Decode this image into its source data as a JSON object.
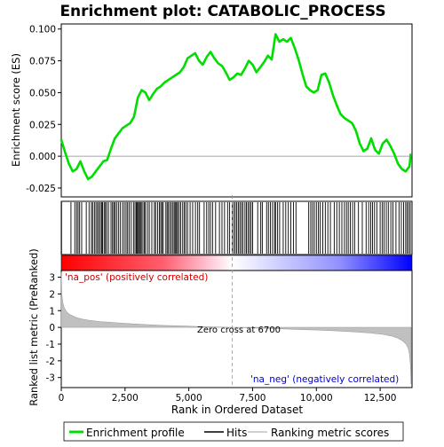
{
  "chart_data": {
    "type": "line",
    "title": "Enrichment plot: CATABOLIC_PROCESS",
    "top_panel": {
      "ylabel": "Enrichment score (ES)",
      "ylim": [
        -0.032,
        0.104
      ],
      "yticks": [
        -0.025,
        0.0,
        0.025,
        0.05,
        0.075,
        0.1
      ],
      "ytick_labels": [
        "-0.025",
        "0.000",
        "0.025",
        "0.050",
        "0.075",
        "0.100"
      ],
      "series": [
        {
          "name": "Enrichment profile",
          "color": "#00dd00",
          "x": [
            0,
            150,
            300,
            450,
            600,
            750,
            900,
            1050,
            1200,
            1350,
            1500,
            1650,
            1800,
            1950,
            2100,
            2250,
            2400,
            2550,
            2700,
            2850,
            3000,
            3150,
            3300,
            3450,
            3600,
            3750,
            3900,
            4050,
            4200,
            4350,
            4500,
            4650,
            4800,
            4950,
            5100,
            5250,
            5400,
            5550,
            5700,
            5850,
            6000,
            6150,
            6300,
            6450,
            6600,
            6750,
            6900,
            7050,
            7200,
            7350,
            7500,
            7650,
            7800,
            7950,
            8100,
            8250,
            8400,
            8550,
            8700,
            8850,
            9000,
            9150,
            9300,
            9450,
            9600,
            9750,
            9900,
            10050,
            10200,
            10350,
            10500,
            10650,
            10800,
            10950,
            11100,
            11250,
            11400,
            11550,
            11700,
            11850,
            12000,
            12150,
            12300,
            12450,
            12600,
            12750,
            12900,
            13050,
            13200,
            13350,
            13500,
            13650,
            13700
          ],
          "y": [
            0.013,
            0.003,
            -0.006,
            -0.012,
            -0.01,
            -0.004,
            -0.012,
            -0.018,
            -0.016,
            -0.012,
            -0.008,
            -0.004,
            -0.003,
            0.006,
            0.014,
            0.018,
            0.022,
            0.024,
            0.026,
            0.031,
            0.046,
            0.052,
            0.05,
            0.044,
            0.049,
            0.053,
            0.055,
            0.058,
            0.06,
            0.062,
            0.064,
            0.066,
            0.07,
            0.077,
            0.079,
            0.081,
            0.075,
            0.072,
            0.078,
            0.082,
            0.077,
            0.073,
            0.071,
            0.066,
            0.06,
            0.062,
            0.065,
            0.064,
            0.069,
            0.075,
            0.072,
            0.066,
            0.07,
            0.074,
            0.079,
            0.076,
            0.096,
            0.09,
            0.092,
            0.09,
            0.093,
            0.085,
            0.076,
            0.065,
            0.055,
            0.052,
            0.05,
            0.052,
            0.064,
            0.065,
            0.058,
            0.048,
            0.04,
            0.033,
            0.03,
            0.028,
            0.026,
            0.02,
            0.01,
            0.004,
            0.006,
            0.014,
            0.005,
            0.002,
            0.01,
            0.013,
            0.008,
            0.002,
            -0.006,
            -0.01,
            -0.012,
            -0.008,
            0.002
          ]
        }
      ]
    },
    "middle_panel": {
      "series_name": "Hits",
      "hit_color": "#000000",
      "hits": [
        10,
        380,
        530,
        600,
        660,
        720,
        800,
        980,
        1090,
        1180,
        1230,
        1300,
        1360,
        1420,
        1470,
        1530,
        1580,
        1620,
        1680,
        1730,
        1780,
        1850,
        1950,
        2010,
        2060,
        2110,
        2170,
        2240,
        2310,
        2400,
        2470,
        2540,
        2600,
        2660,
        2740,
        2830,
        2890,
        2940,
        2980,
        3020,
        3060,
        3100,
        3140,
        3200,
        3260,
        3300,
        3380,
        3450,
        3550,
        3650,
        3700,
        3780,
        3850,
        3900,
        3950,
        4000,
        4100,
        4150,
        4200,
        4260,
        4320,
        4380,
        4430,
        4480,
        4520,
        4560,
        4620,
        4680,
        4760,
        4820,
        4880,
        4950,
        5050,
        5150,
        5260,
        5350,
        5420,
        5600,
        5700,
        5780,
        5850,
        5930,
        6050,
        6200,
        6300,
        6400,
        6520,
        6600,
        6700,
        6760,
        6820,
        6880,
        6940,
        7000,
        7060,
        7120,
        7200,
        7260,
        7320,
        7380,
        7440,
        7500,
        7700,
        7820,
        7880,
        8050,
        8120,
        8200,
        8280,
        8360,
        8400,
        8480,
        8560,
        8700,
        8800,
        8900,
        9000,
        9100,
        9200,
        9700,
        9780,
        9850,
        9920,
        10000,
        10080,
        10150,
        10250,
        10350,
        10450,
        10550,
        10700,
        10800,
        10900,
        11000,
        11100,
        11180,
        11250,
        11330,
        11420,
        11500,
        11650,
        11800,
        11950,
        12050,
        12130,
        12200,
        12280,
        12370,
        12500,
        12580,
        12650,
        12740,
        12820,
        12920,
        13000,
        13120,
        13240,
        13330,
        13420,
        13500,
        13560,
        13620,
        13680
      ]
    },
    "bottom_panel": {
      "series_name": "Ranking metric scores",
      "fill_color": "#c0c0c0",
      "ylabel": "Ranked list metric (PreRanked)",
      "xlabel": "Rank in Ordered Dataset",
      "ylim": [
        -3.6,
        3.4
      ],
      "yticks": [
        -3,
        -2,
        -1,
        0,
        1,
        2,
        3
      ],
      "ytick_labels": [
        "-3",
        "-2",
        "-1",
        "0",
        "1",
        "2",
        "3"
      ],
      "x": [
        0,
        20,
        60,
        120,
        200,
        300,
        450,
        600,
        800,
        1100,
        1500,
        2000,
        2600,
        3300,
        4000,
        4800,
        5600,
        6300,
        6700,
        7200,
        7800,
        8500,
        9200,
        10000,
        10800,
        11500,
        12100,
        12600,
        12950,
        13200,
        13400,
        13520,
        13600,
        13650,
        13690,
        13710
      ],
      "y": [
        3.3,
        2.0,
        1.5,
        1.15,
        0.95,
        0.8,
        0.68,
        0.58,
        0.5,
        0.42,
        0.35,
        0.29,
        0.23,
        0.17,
        0.12,
        0.08,
        0.04,
        0.015,
        0.0,
        -0.02,
        -0.05,
        -0.08,
        -0.12,
        -0.16,
        -0.21,
        -0.27,
        -0.34,
        -0.42,
        -0.52,
        -0.65,
        -0.82,
        -1.0,
        -1.25,
        -1.6,
        -2.3,
        -3.4
      ],
      "pos_label": "'na_pos' (positively correlated)",
      "neg_label": "'na_neg' (negatively correlated)",
      "pos_label_color": "#cc0000",
      "neg_label_color": "#0000cc",
      "zero_cross_label": "Zero cross at 6700",
      "zero_cross_x": 6700
    },
    "xlim": [
      0,
      13750
    ],
    "xticks": [
      0,
      2500,
      5000,
      7500,
      10000,
      12500
    ],
    "xtick_labels": [
      "0",
      "2,500",
      "5,000",
      "7,500",
      "10,000",
      "12,500"
    ],
    "color_bar": {
      "pos_color": "#ff0000",
      "neg_color": "#0000ff",
      "mid_color": "#ffffff"
    },
    "legend": {
      "placement": "bottom",
      "entries": [
        {
          "label": "Enrichment profile",
          "color": "#00dd00",
          "style": "thick-line"
        },
        {
          "label": "Hits",
          "color": "#000000",
          "style": "line"
        },
        {
          "label": "Ranking metric scores",
          "color": "#c0c0c0",
          "style": "line"
        }
      ]
    }
  }
}
